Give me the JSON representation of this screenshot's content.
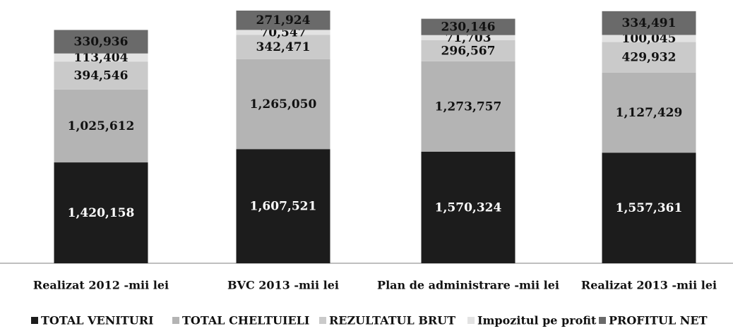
{
  "chart_data": {
    "type": "stacked_bar",
    "categories": [
      "Realizat 2012 -mii lei",
      "BVC 2013 -mii lei",
      "Plan de administrare -mii lei",
      "Realizat 2013 -mii lei"
    ],
    "series": [
      {
        "name": "TOTAL VENITURI",
        "color": "#1c1c1c",
        "values": [
          1420158,
          1607521,
          1570324,
          1557361
        ],
        "value_labels": [
          "1,420,158",
          "1,607,521",
          "1,570,324",
          "1,557,361"
        ]
      },
      {
        "name": "TOTAL CHELTUIELI",
        "color": "#b4b4b4",
        "values": [
          1025612,
          1265050,
          1273757,
          1127429
        ],
        "value_labels": [
          "1,025,612",
          "1,265,050",
          "1,273,757",
          "1,127,429"
        ]
      },
      {
        "name": "REZULTATUL BRUT",
        "color": "#cacaca",
        "values": [
          394546,
          342471,
          296567,
          429932
        ],
        "value_labels": [
          "394,546",
          "342,471",
          "296,567",
          "429,932"
        ]
      },
      {
        "name": "Impozitul pe profit",
        "color": "#e2e2e2",
        "values": [
          113404,
          70547,
          71703,
          100045
        ],
        "value_labels": [
          "113,404",
          "70,547",
          "71,703",
          "100,045"
        ]
      },
      {
        "name": "PROFITUL NET",
        "color": "#6a6a6a",
        "values": [
          330936,
          271924,
          230146,
          334491
        ],
        "value_labels": [
          "330,936",
          "271,924",
          "230,146",
          "334,491"
        ]
      }
    ]
  }
}
